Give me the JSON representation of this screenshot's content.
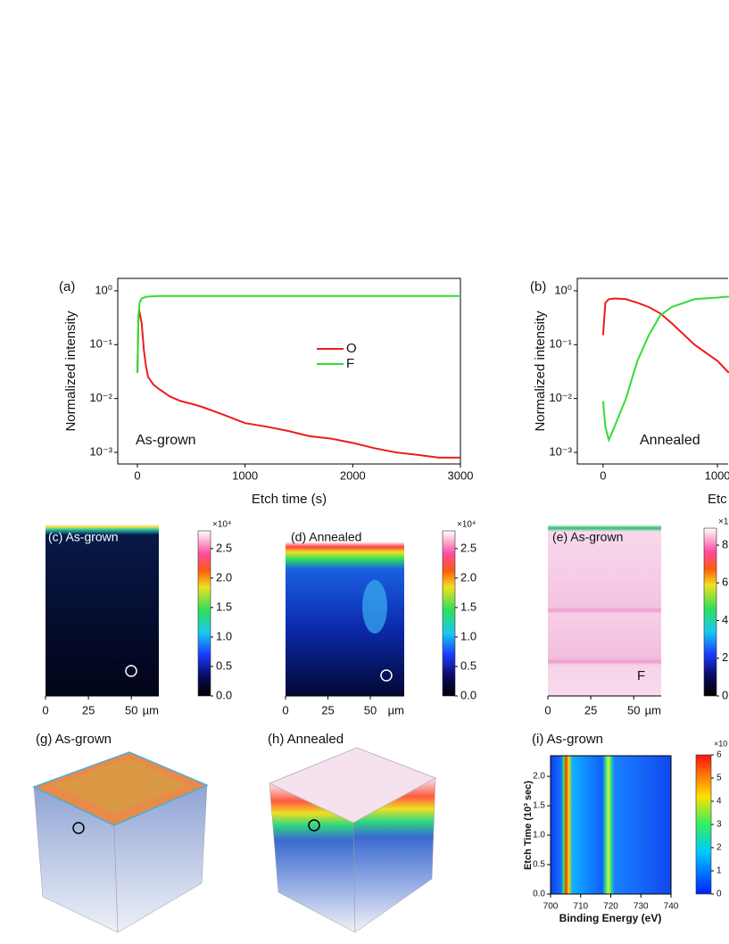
{
  "chart_data": [
    {
      "type": "line",
      "panel": "(a)",
      "x_label": "Etch time (s)",
      "y_label": "Normalized intensity",
      "annotation": "As-grown",
      "log_y": true,
      "legend": "center",
      "x": [
        0,
        10,
        20,
        40,
        60,
        80,
        100,
        150,
        200,
        300,
        400,
        500,
        600,
        800,
        1000,
        1200,
        1400,
        1600,
        1800,
        2000,
        2200,
        2400,
        2600,
        2800,
        3000
      ],
      "series": [
        {
          "name": "O",
          "color": "#ee1c1c",
          "values": [
            0.03,
            0.35,
            0.4,
            0.25,
            0.08,
            0.04,
            0.025,
            0.018,
            0.015,
            0.011,
            0.009,
            0.008,
            0.007,
            0.005,
            0.0035,
            0.003,
            0.0025,
            0.002,
            0.0018,
            0.0015,
            0.0012,
            0.001,
            0.0009,
            0.0008,
            0.0008
          ]
        },
        {
          "name": "F",
          "color": "#33dd33",
          "values": [
            0.03,
            0.35,
            0.6,
            0.72,
            0.75,
            0.77,
            0.78,
            0.79,
            0.8,
            0.8,
            0.8,
            0.8,
            0.8,
            0.8,
            0.8,
            0.8,
            0.8,
            0.8,
            0.8,
            0.8,
            0.8,
            0.8,
            0.8,
            0.8,
            0.8
          ]
        }
      ],
      "xlim": [
        -182,
        3000
      ],
      "xticks": [
        0,
        1000,
        2000,
        3000
      ],
      "ylim": [
        0.00061,
        1.7
      ],
      "yticks": [
        {
          "value": 0.001,
          "label": "10⁻³"
        },
        {
          "value": 0.01,
          "label": "10⁻²"
        },
        {
          "value": 0.1,
          "label": "10⁻¹"
        },
        {
          "value": 1,
          "label": "10⁰"
        }
      ]
    },
    {
      "type": "line",
      "panel": "(b)",
      "x_label": "Etc",
      "y_label": "Normalized intensity",
      "annotation": "Annealed",
      "log_y": true,
      "x": [
        0,
        20,
        50,
        100,
        200,
        300,
        400,
        500,
        600,
        800,
        1000,
        1100
      ],
      "series": [
        {
          "color": "#ee1c1c",
          "values": [
            0.15,
            0.6,
            0.7,
            0.72,
            0.7,
            0.6,
            0.5,
            0.38,
            0.25,
            0.1,
            0.05,
            0.03
          ]
        },
        {
          "color": "#33dd33",
          "values": [
            0.009,
            0.003,
            0.0017,
            0.003,
            0.01,
            0.05,
            0.15,
            0.35,
            0.5,
            0.7,
            0.75,
            0.78
          ]
        }
      ],
      "xlim": [
        -225,
        1093
      ],
      "xticks": [
        0,
        1000
      ],
      "ylim": [
        0.00061,
        1.7
      ],
      "yticks": [
        {
          "value": 0.001,
          "label": "10⁻³"
        },
        {
          "value": 0.01,
          "label": "10⁻²"
        },
        {
          "value": 0.1,
          "label": "10⁻¹"
        },
        {
          "value": 1,
          "label": "10⁰"
        }
      ]
    },
    {
      "type": "heatmap",
      "panel": "(i) As-grown",
      "x_label": "Binding Energy (eV)",
      "y_label": "Etch Time (10³ sec)",
      "xlim": [
        700,
        740
      ],
      "xticks": [
        700,
        710,
        720,
        730,
        740
      ],
      "ylim": [
        0,
        2.35
      ],
      "yticks": [
        {
          "value": 0,
          "label": "0.0"
        },
        {
          "value": 0.5,
          "label": "0.5"
        },
        {
          "value": 1,
          "label": "1.0"
        },
        {
          "value": 1.5,
          "label": "1.5"
        },
        {
          "value": 2,
          "label": "2.0"
        }
      ],
      "colorbar": {
        "clim": [
          0,
          6
        ],
        "ticks": [
          0,
          1,
          2,
          3,
          4,
          5,
          6
        ],
        "unit_label": "×10"
      }
    }
  ],
  "images": [
    {
      "label": "(c) As-grown",
      "colorbar": {
        "clim": [
          0,
          2.8
        ],
        "unit_label": "×10⁴",
        "ticks": [
          {
            "value": 0,
            "label": "0.0"
          },
          {
            "value": 0.5,
            "label": "0.5"
          },
          {
            "value": 1,
            "label": "1.0"
          },
          {
            "value": 1.5,
            "label": "1.5"
          },
          {
            "value": 2,
            "label": "2.0"
          },
          {
            "value": 2.5,
            "label": "2.5"
          }
        ]
      },
      "scale": {
        "xlim": [
          0,
          66
        ],
        "ticks": [
          0,
          25,
          50
        ],
        "unit": "µm"
      }
    },
    {
      "label": "(d) Annealed",
      "colorbar": {
        "clim": [
          0,
          2.8
        ],
        "unit_label": "×10⁴",
        "ticks": [
          {
            "value": 0,
            "label": "0.0"
          },
          {
            "value": 0.5,
            "label": "0.5"
          },
          {
            "value": 1,
            "label": "1.0"
          },
          {
            "value": 1.5,
            "label": "1.5"
          },
          {
            "value": 2,
            "label": "2.0"
          },
          {
            "value": 2.5,
            "label": "2.5"
          }
        ]
      },
      "scale": {
        "xlim": [
          0,
          70
        ],
        "ticks": [
          0,
          25,
          50
        ],
        "unit": "µm"
      }
    },
    {
      "label": "(e) As-grown",
      "element": "F",
      "colorbar": {
        "clim": [
          0,
          8.9
        ],
        "unit_label": "×1",
        "ticks": [
          0,
          2,
          4,
          6,
          8
        ]
      },
      "scale": {
        "xlim": [
          0,
          66
        ],
        "ticks": [
          0,
          25,
          50
        ],
        "unit": "µm"
      }
    },
    {
      "label": "(g) As-grown"
    },
    {
      "label": "(h) Annealed"
    }
  ]
}
